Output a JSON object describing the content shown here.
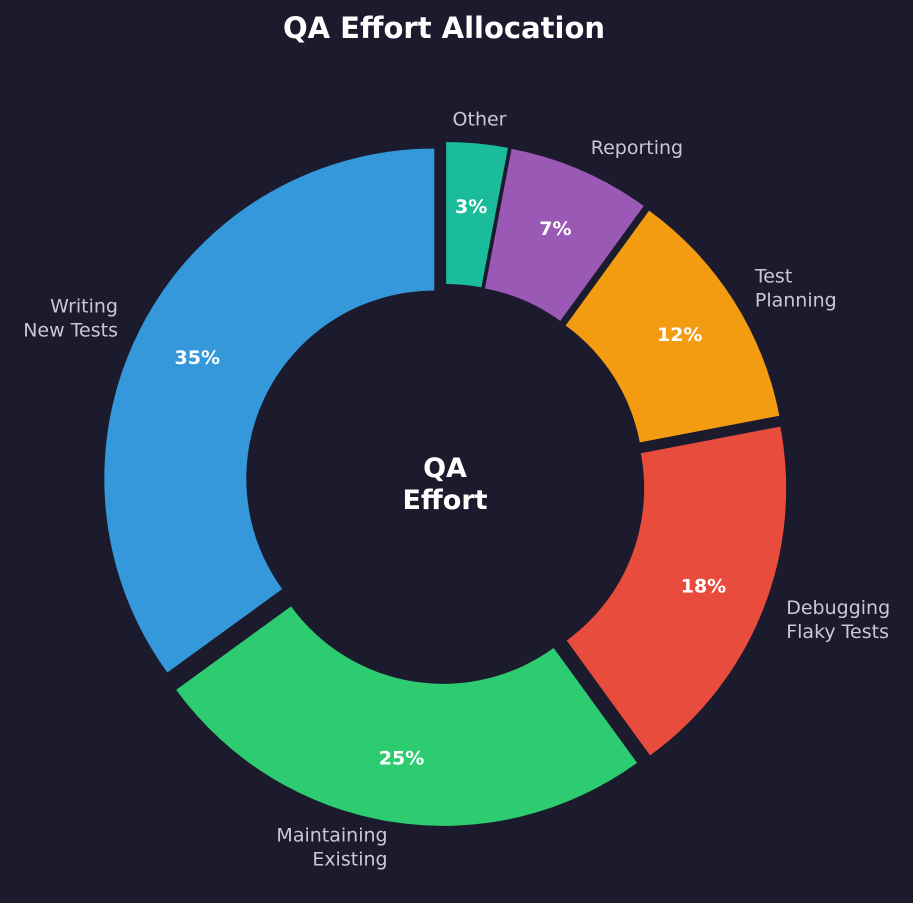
{
  "chart_data": {
    "type": "pie",
    "variant": "donut",
    "title": "QA Effort Allocation",
    "center_label": [
      "QA",
      "Effort"
    ],
    "start": "top",
    "direction": "clockwise",
    "background_color": "#1b1b2d",
    "slices": [
      {
        "label": [
          "Other"
        ],
        "value": 3,
        "pct_label": "3%",
        "color": "#1abc9c"
      },
      {
        "label": [
          "Reporting"
        ],
        "value": 7,
        "pct_label": "7%",
        "color": "#9b59b6"
      },
      {
        "label": [
          "Test",
          "Planning"
        ],
        "value": 12,
        "pct_label": "12%",
        "color": "#f39c12"
      },
      {
        "label": [
          "Debugging",
          "Flaky Tests"
        ],
        "value": 18,
        "pct_label": "18%",
        "color": "#e74c3c"
      },
      {
        "label": [
          "Maintaining",
          "Existing"
        ],
        "value": 25,
        "pct_label": "25%",
        "color": "#2ecc71"
      },
      {
        "label": [
          "Writing",
          "New Tests"
        ],
        "value": 35,
        "pct_label": "35%",
        "color": "#3498db"
      }
    ]
  }
}
